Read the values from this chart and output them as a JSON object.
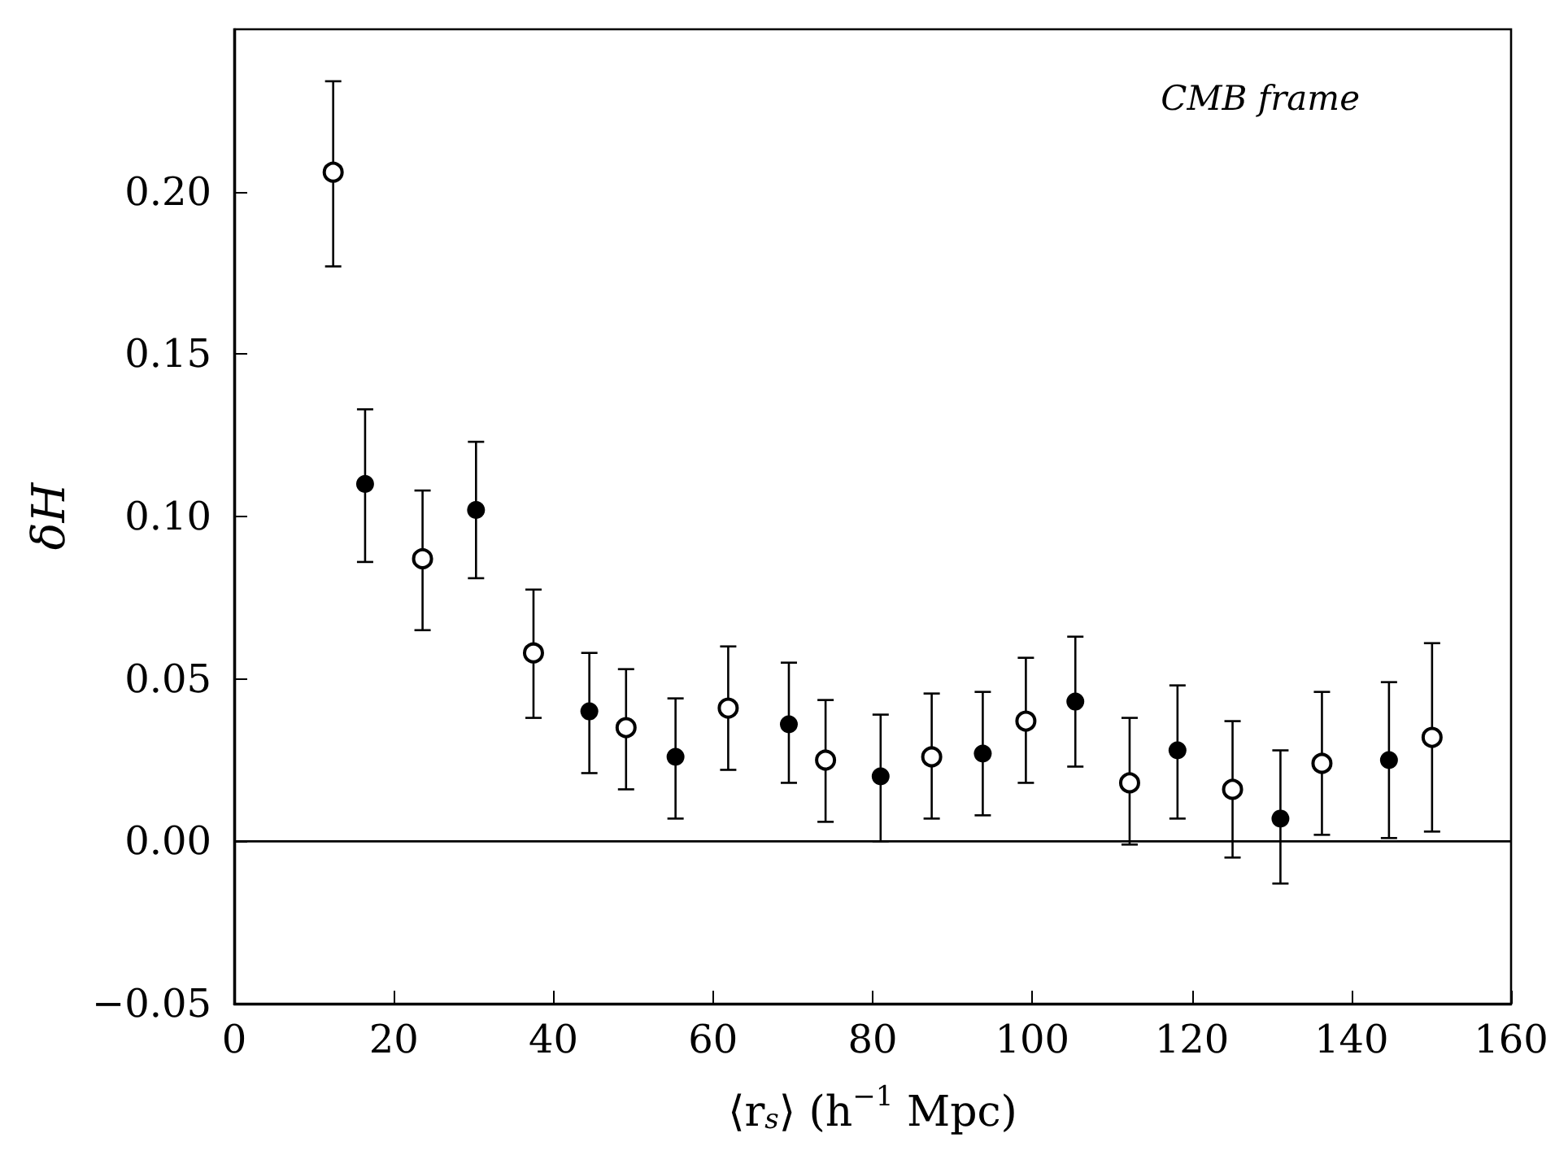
{
  "chart_data": {
    "type": "scatter",
    "xlabel": "⟨r$_{s}$⟩ (h$^{−1}$ Mpc)",
    "ylabel": "δH",
    "annotations": [
      "CMB frame"
    ],
    "series": [
      {
        "type": "scatter",
        "color": "#000000",
        "marker": "circle",
        "x": [
          16.4,
          30.3,
          44.5,
          55.3,
          69.5,
          81.0,
          93.8,
          105.4,
          118.2,
          131.1,
          144.7
        ],
        "values": [
          0.11,
          0.102,
          0.04,
          0.026,
          0.036,
          0.02,
          0.027,
          0.043,
          0.028,
          0.007,
          0.025
        ],
        "errors": [
          [
            0.086,
            0.133
          ],
          [
            0.081,
            0.123
          ],
          [
            0.021,
            0.058
          ],
          [
            0.007,
            0.044
          ],
          [
            0.018,
            0.055
          ],
          [
            0.0,
            0.039
          ],
          [
            0.008,
            0.046
          ],
          [
            0.023,
            0.063
          ],
          [
            0.007,
            0.048
          ],
          [
            -0.013,
            0.028
          ],
          [
            0.001,
            0.049
          ]
        ]
      },
      {
        "type": "scatter",
        "color": "#000000",
        "marker": "open circle",
        "x": [
          12.4,
          23.6,
          37.5,
          49.1,
          61.9,
          74.1,
          87.4,
          99.2,
          112.2,
          125.1,
          136.3,
          150.1
        ],
        "values": [
          0.206,
          0.087,
          0.058,
          0.035,
          0.041,
          0.025,
          0.026,
          0.037,
          0.018,
          0.016,
          0.024,
          0.032
        ],
        "errors": [
          [
            0.177,
            0.234
          ],
          [
            0.065,
            0.108
          ],
          [
            0.038,
            0.0775
          ],
          [
            0.016,
            0.053
          ],
          [
            0.022,
            0.06
          ],
          [
            0.006,
            0.0435
          ],
          [
            0.007,
            0.0455
          ],
          [
            0.018,
            0.0565
          ],
          [
            -0.001,
            0.038
          ],
          [
            -0.005,
            0.037
          ],
          [
            0.002,
            0.046
          ],
          [
            0.003,
            0.061
          ]
        ]
      }
    ],
    "ref_lines": [
      {
        "axis": "y",
        "value": 0,
        "color": "#000000"
      }
    ],
    "xlim": [
      0,
      160
    ],
    "xticks": [
      0,
      20,
      40,
      60,
      80,
      100,
      120,
      140,
      160
    ],
    "ylim": [
      -0.05,
      0.25
    ],
    "yticks": [
      {
        "value": -0.05,
        "label": "−0.05"
      },
      {
        "value": 0,
        "label": "0.00"
      },
      {
        "value": 0.05,
        "label": "0.05"
      },
      {
        "value": 0.1,
        "label": "0.10"
      },
      {
        "value": 0.15,
        "label": "0.15"
      },
      {
        "value": 0.2,
        "label": "0.20"
      }
    ],
    "grid": false
  }
}
